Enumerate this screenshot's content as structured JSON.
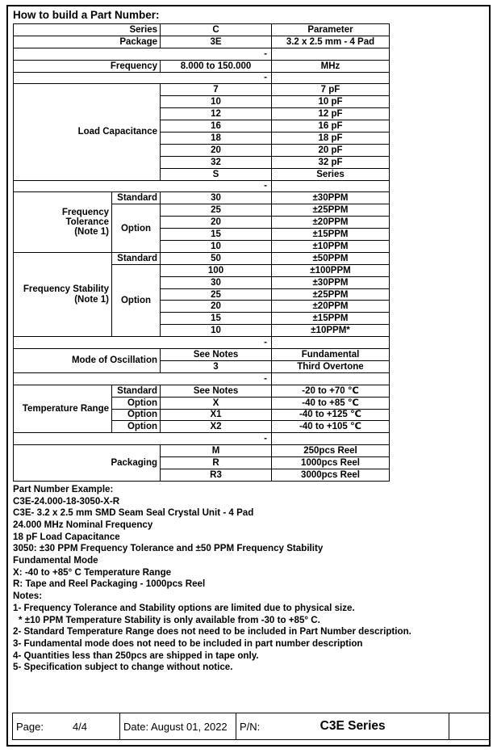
{
  "title": "How to build a Part Number:",
  "part_table": {
    "rows": [
      [
        {
          "t": "Series",
          "cs": 2,
          "cl": "lbl"
        },
        {
          "t": "C",
          "cl": "ctr"
        },
        {
          "t": "Parameter",
          "cl": "ctr"
        }
      ],
      [
        {
          "t": "Package",
          "cs": 2,
          "cl": "lbl"
        },
        {
          "t": "3E",
          "cl": "ctr"
        },
        {
          "t": "3.2 x 2.5 mm - 4 Pad",
          "cl": "ctr"
        }
      ],
      [
        {
          "t": "-",
          "cs": 3,
          "cl": "dash"
        },
        {
          "t": "",
          "cl": "ctr"
        }
      ],
      [
        {
          "t": "Frequency",
          "cs": 2,
          "cl": "lbl"
        },
        {
          "t": "8.000 to 150.000",
          "cl": "ctr"
        },
        {
          "t": "MHz",
          "cl": "ctr"
        }
      ],
      [
        {
          "t": "-",
          "cs": 3,
          "cl": "dash"
        },
        {
          "t": "",
          "cl": "ctr"
        }
      ],
      [
        {
          "t": "Load Capacitance",
          "cs": 2,
          "rs": 8,
          "cl": "lbl"
        },
        {
          "t": "7",
          "cl": "ctr"
        },
        {
          "t": "7 pF",
          "cl": "ctr"
        }
      ],
      [
        {
          "t": "10",
          "cl": "ctr"
        },
        {
          "t": "10 pF",
          "cl": "ctr"
        }
      ],
      [
        {
          "t": "12",
          "cl": "ctr"
        },
        {
          "t": "12 pF",
          "cl": "ctr"
        }
      ],
      [
        {
          "t": "16",
          "cl": "ctr"
        },
        {
          "t": "16 pF",
          "cl": "ctr"
        }
      ],
      [
        {
          "t": "18",
          "cl": "ctr"
        },
        {
          "t": "18 pF",
          "cl": "ctr"
        }
      ],
      [
        {
          "t": "20",
          "cl": "ctr"
        },
        {
          "t": "20 pF",
          "cl": "ctr"
        }
      ],
      [
        {
          "t": "32",
          "cl": "ctr"
        },
        {
          "t": "32 pF",
          "cl": "ctr"
        }
      ],
      [
        {
          "t": "S",
          "cl": "ctr"
        },
        {
          "t": "Series",
          "cl": "ctr"
        }
      ],
      [
        {
          "t": "-",
          "cs": 3,
          "cl": "dash"
        },
        {
          "t": "",
          "cl": "ctr"
        }
      ],
      [
        {
          "t": "Frequency\nTolerance\n(Note 1)",
          "rs": 5,
          "cl": "lbl"
        },
        {
          "t": "Standard",
          "cl": "lbl"
        },
        {
          "t": "30",
          "cl": "ctr"
        },
        {
          "t": "±30PPM",
          "cl": "ctr"
        }
      ],
      [
        {
          "t": "Option",
          "rs": 4,
          "cl": "opt"
        },
        {
          "t": "25",
          "cl": "ctr"
        },
        {
          "t": "±25PPM",
          "cl": "ctr"
        }
      ],
      [
        {
          "t": "20",
          "cl": "ctr"
        },
        {
          "t": "±20PPM",
          "cl": "ctr"
        }
      ],
      [
        {
          "t": "15",
          "cl": "ctr"
        },
        {
          "t": "±15PPM",
          "cl": "ctr"
        }
      ],
      [
        {
          "t": "10",
          "cl": "ctr"
        },
        {
          "t": "±10PPM",
          "cl": "ctr"
        }
      ],
      [
        {
          "t": "Frequency Stability\n(Note 1)",
          "rs": 7,
          "cl": "lbl"
        },
        {
          "t": "Standard",
          "cl": "lbl"
        },
        {
          "t": "50",
          "cl": "ctr"
        },
        {
          "t": "±50PPM",
          "cl": "ctr"
        }
      ],
      [
        {
          "t": "Option",
          "rs": 6,
          "cl": "opt"
        },
        {
          "t": "100",
          "cl": "ctr"
        },
        {
          "t": "±100PPM",
          "cl": "ctr"
        }
      ],
      [
        {
          "t": "30",
          "cl": "ctr"
        },
        {
          "t": "±30PPM",
          "cl": "ctr"
        }
      ],
      [
        {
          "t": "25",
          "cl": "ctr"
        },
        {
          "t": "±25PPM",
          "cl": "ctr"
        }
      ],
      [
        {
          "t": "20",
          "cl": "ctr"
        },
        {
          "t": "±20PPM",
          "cl": "ctr"
        }
      ],
      [
        {
          "t": "15",
          "cl": "ctr"
        },
        {
          "t": "±15PPM",
          "cl": "ctr"
        }
      ],
      [
        {
          "t": "10",
          "cl": "ctr"
        },
        {
          "t": "±10PPM*",
          "cl": "ctr"
        }
      ],
      [
        {
          "t": "-",
          "cs": 3,
          "cl": "dash"
        },
        {
          "t": "",
          "cl": "ctr"
        }
      ],
      [
        {
          "t": "Mode of Oscillation",
          "cs": 2,
          "rs": 2,
          "cl": "lbl"
        },
        {
          "t": "See Notes",
          "cl": "ctr"
        },
        {
          "t": "Fundamental",
          "cl": "ctr"
        }
      ],
      [
        {
          "t": "3",
          "cl": "ctr"
        },
        {
          "t": "Third Overtone",
          "cl": "ctr"
        }
      ],
      [
        {
          "t": "-",
          "cs": 3,
          "cl": "dash"
        },
        {
          "t": "",
          "cl": "ctr"
        }
      ],
      [
        {
          "t": "Temperature Range",
          "rs": 4,
          "cl": "lbl"
        },
        {
          "t": "Standard",
          "cl": "lbl"
        },
        {
          "t": "See Notes",
          "cl": "ctr"
        },
        {
          "t": "-20 to +70 ℃",
          "cl": "ctr"
        }
      ],
      [
        {
          "t": "Option",
          "cl": "lbl"
        },
        {
          "t": "X",
          "cl": "ctr"
        },
        {
          "t": "-40 to +85 ℃",
          "cl": "ctr"
        }
      ],
      [
        {
          "t": "Option",
          "cl": "lbl"
        },
        {
          "t": "X1",
          "cl": "ctr"
        },
        {
          "t": "-40 to +125 ℃",
          "cl": "ctr"
        }
      ],
      [
        {
          "t": "Option",
          "cl": "lbl"
        },
        {
          "t": "X2",
          "cl": "ctr"
        },
        {
          "t": "-40 to +105 ℃",
          "cl": "ctr"
        }
      ],
      [
        {
          "t": "-",
          "cs": 3,
          "cl": "dash"
        },
        {
          "t": "",
          "cl": "ctr"
        }
      ],
      [
        {
          "t": "Packaging",
          "cs": 2,
          "rs": 3,
          "cl": "lbl"
        },
        {
          "t": "M",
          "cl": "ctr"
        },
        {
          "t": "250pcs Reel",
          "cl": "ctr"
        }
      ],
      [
        {
          "t": "R",
          "cl": "ctr"
        },
        {
          "t": "1000pcs Reel",
          "cl": "ctr"
        }
      ],
      [
        {
          "t": "R3",
          "cl": "ctr"
        },
        {
          "t": "3000pcs Reel",
          "cl": "ctr"
        }
      ]
    ]
  },
  "body_lines": [
    {
      "text": "Part Number Example:"
    },
    {
      "text": "C3E-24.000-18-3050-X-R"
    },
    {
      "text": "C3E- 3.2 x 2.5 mm SMD Seam Seal Crystal Unit - 4 Pad"
    },
    {
      "text": "24.000 MHz Nominal Frequency"
    },
    {
      "text": "18 pF Load Capacitance"
    },
    {
      "text": "3050: ±30 PPM Frequency Tolerance and ±50 PPM Frequency Stability"
    },
    {
      "text": "Fundamental Mode"
    },
    {
      "text": "X: -40 to +85° C Temperature Range"
    },
    {
      "text": "R: Tape and Reel Packaging - 1000pcs Reel"
    },
    {
      "text": "Notes:"
    },
    {
      "text": "1- Frequency Tolerance and Stability options are limited due to physical size."
    },
    {
      "text": "* ±10 PPM Temperature Stability is only available from -30 to +85° C.",
      "indent": true
    },
    {
      "text": "2- Standard Temperature Range does not need to be included in Part Number description."
    },
    {
      "text": "3- Fundamental mode does not need to be included in part number description"
    },
    {
      "text": "4- Quantities less than 250pcs are shipped in tape only."
    },
    {
      "text": "5- Specification subject to change without notice."
    }
  ],
  "footer": {
    "page_label": "Page:",
    "page_value": "4/4",
    "date": "Date: August 01, 2022",
    "pn_label": "P/N:",
    "pn_value": "C3E Series"
  },
  "colors": {
    "text": "#000000",
    "border": "#000000",
    "background": "#ffffff"
  }
}
